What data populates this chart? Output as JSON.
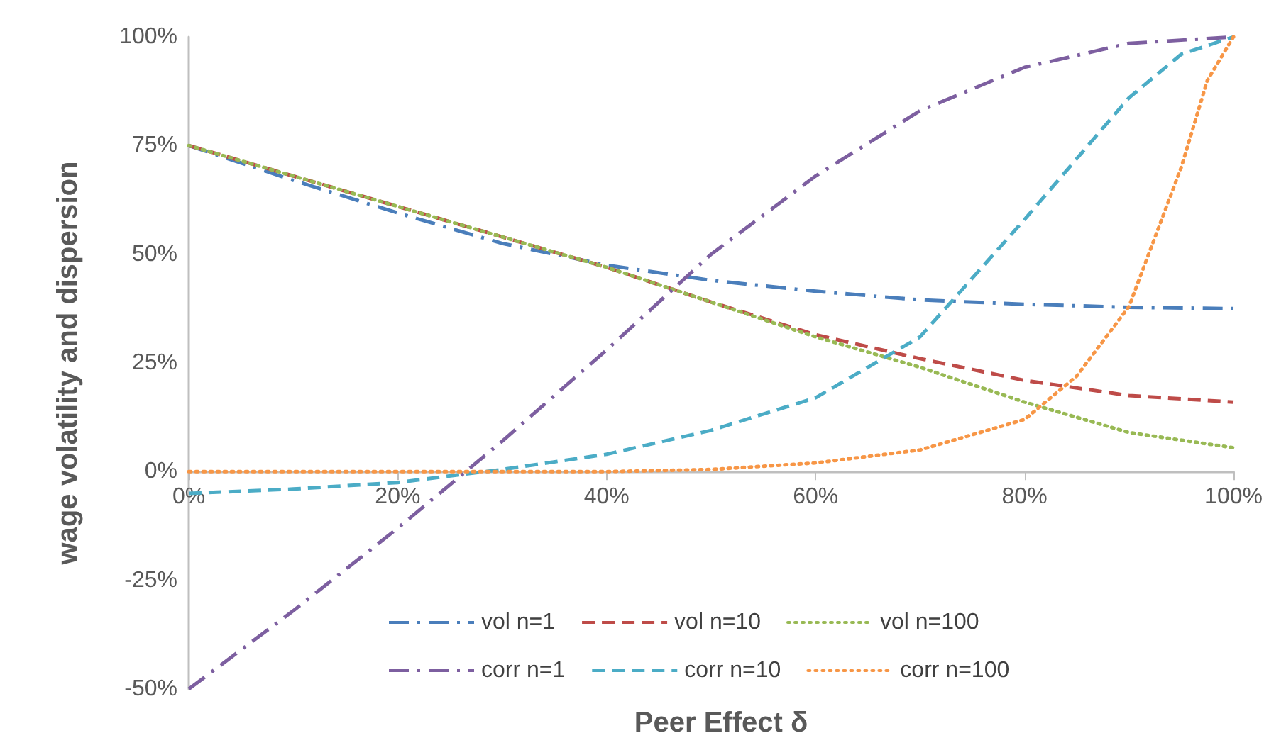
{
  "chart_data": {
    "type": "line",
    "xlabel": "Peer Effect δ",
    "ylabel": "wage volatility and dispersion",
    "xlim": [
      0,
      100
    ],
    "ylim": [
      -50,
      100
    ],
    "xticks": [
      {
        "value": 0,
        "label": "0%"
      },
      {
        "value": 20,
        "label": "20%"
      },
      {
        "value": 40,
        "label": "40%"
      },
      {
        "value": 60,
        "label": "60%"
      },
      {
        "value": 80,
        "label": "80%"
      },
      {
        "value": 100,
        "label": "100%"
      }
    ],
    "yticks": [
      {
        "value": -50,
        "label": "-50%"
      },
      {
        "value": -25,
        "label": "-25%"
      },
      {
        "value": 0,
        "label": "0%"
      },
      {
        "value": 25,
        "label": "25%"
      },
      {
        "value": 50,
        "label": "50%"
      },
      {
        "value": 75,
        "label": "75%"
      },
      {
        "value": 100,
        "label": "100%"
      }
    ],
    "grid": false,
    "legend": "bottom",
    "marker": "none",
    "series": [
      {
        "name": "vol n=1",
        "color": "#4a7ebb",
        "line_style": "dashdot",
        "x": [
          0,
          10,
          20,
          30,
          40,
          50,
          60,
          70,
          80,
          90,
          100
        ],
        "values": [
          75,
          67,
          59.5,
          52.5,
          47.5,
          44,
          41.5,
          39.5,
          38.5,
          37.8,
          37.5
        ]
      },
      {
        "name": "vol n=10",
        "color": "#be4b48",
        "line_style": "dashed",
        "x": [
          0,
          10,
          20,
          30,
          40,
          50,
          60,
          70,
          80,
          90,
          100
        ],
        "values": [
          75,
          68,
          61,
          54,
          47,
          39,
          31.5,
          26,
          21,
          17.5,
          16
        ]
      },
      {
        "name": "vol n=100",
        "color": "#98b954",
        "line_style": "dotted",
        "x": [
          0,
          10,
          20,
          30,
          40,
          50,
          60,
          70,
          80,
          90,
          100
        ],
        "values": [
          75,
          68,
          61,
          54,
          47,
          39,
          31,
          24,
          16,
          9,
          5.5
        ]
      },
      {
        "name": "corr n=1",
        "color": "#7d5fa0",
        "line_style": "dashdot",
        "x": [
          0,
          10,
          20,
          30,
          40,
          50,
          60,
          70,
          80,
          90,
          100
        ],
        "values": [
          -50,
          -32,
          -13,
          7,
          28,
          50,
          68,
          83,
          93,
          98.5,
          100
        ]
      },
      {
        "name": "corr n=10",
        "color": "#4bacc6",
        "line_style": "dashed",
        "x": [
          0,
          10,
          20,
          30,
          40,
          50,
          60,
          70,
          80,
          90,
          95,
          100
        ],
        "values": [
          -5,
          -4,
          -2.5,
          0.5,
          4,
          9.5,
          17,
          31,
          58,
          86,
          96,
          100
        ]
      },
      {
        "name": "corr n=100",
        "color": "#f79646",
        "line_style": "dotted",
        "x": [
          0,
          10,
          20,
          30,
          40,
          50,
          60,
          70,
          80,
          85,
          90,
          95,
          97.5,
          100
        ],
        "values": [
          0,
          0,
          0,
          0,
          0,
          0.5,
          2,
          5,
          12,
          22,
          38,
          70,
          90,
          100
        ]
      }
    ]
  }
}
